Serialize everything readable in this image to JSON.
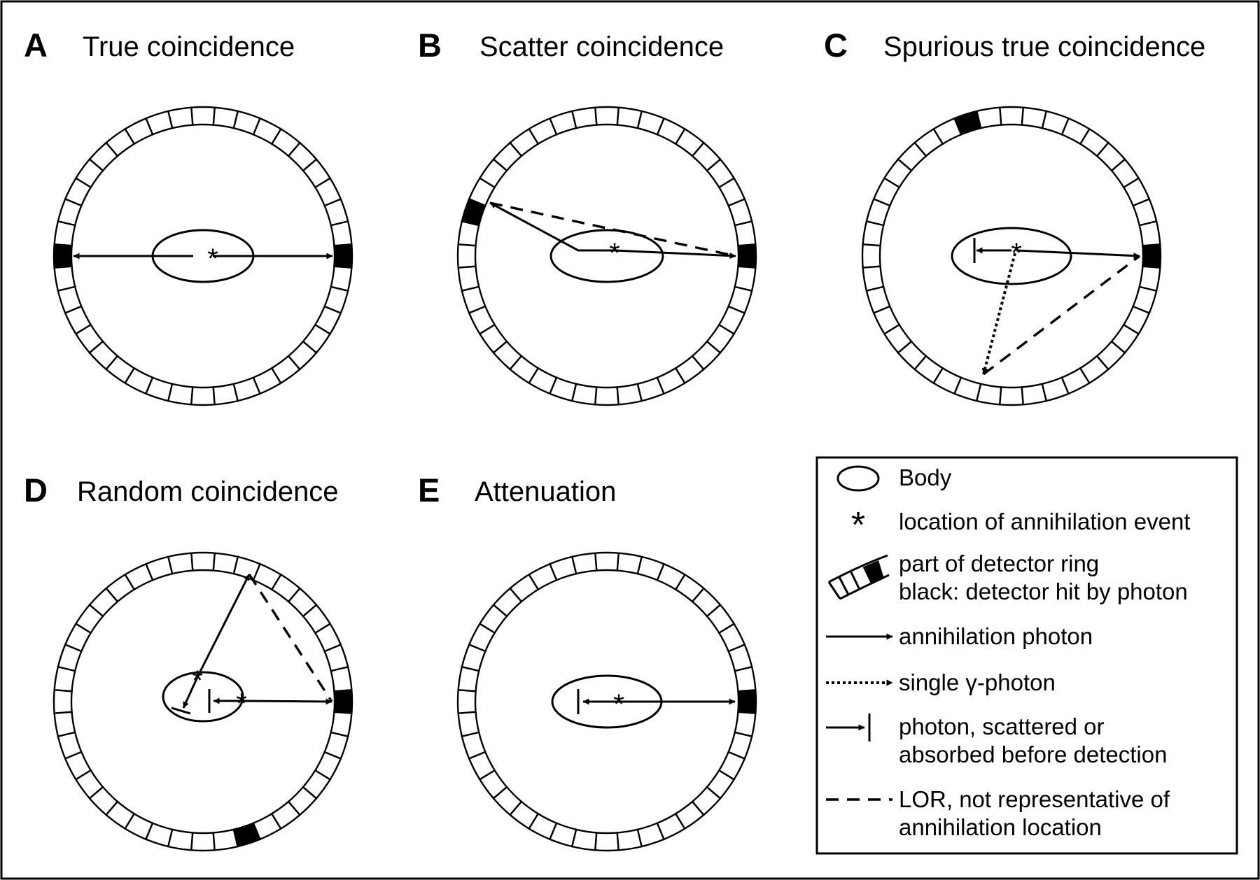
{
  "panels": [
    {
      "letter": "A",
      "title": "True coincidence"
    },
    {
      "letter": "B",
      "title": "Scatter coincidence"
    },
    {
      "letter": "C",
      "title": "Spurious true coincidence"
    },
    {
      "letter": "D",
      "title": "Random coincidence"
    },
    {
      "letter": "E",
      "title": "Attenuation"
    }
  ],
  "legend": {
    "body": "Body",
    "annihilation_location": "location of annihilation event",
    "detector_ring_1": "part of detector ring",
    "detector_ring_2": "black: detector hit by photon",
    "annihilation_photon": "annihilation photon",
    "single_photon": "single γ-photon",
    "scattered_1": "photon, scattered or",
    "scattered_2": "absorbed before detection",
    "lor_1": "LOR, not representative of",
    "lor_2": "annihilation location"
  }
}
